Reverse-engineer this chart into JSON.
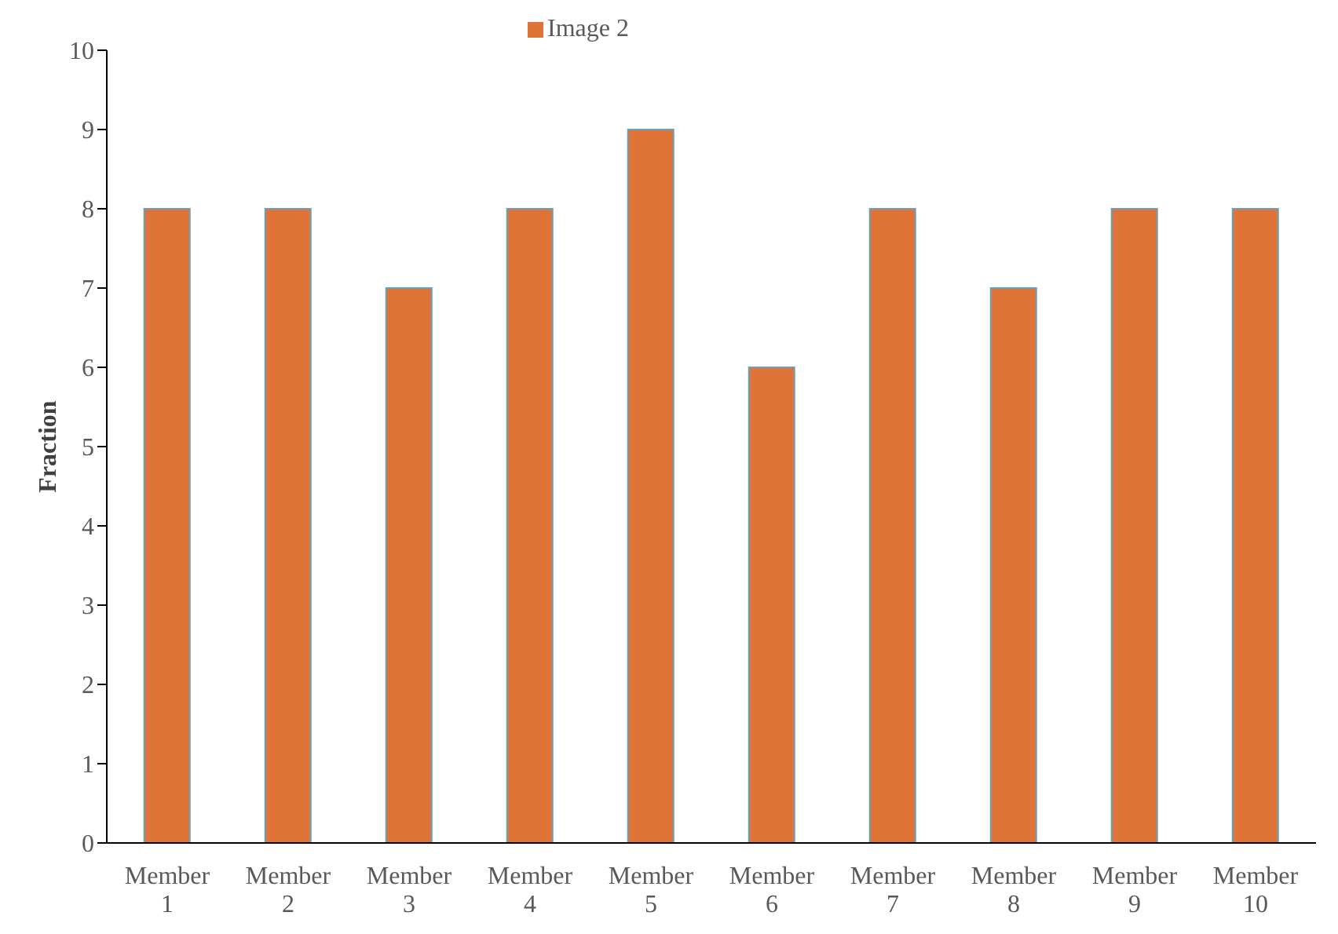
{
  "chart_data": {
    "type": "bar",
    "ylabel": "Fraction",
    "categories": [
      "Member 1",
      "Member 2",
      "Member 3",
      "Member 4",
      "Member 5",
      "Member 6",
      "Member 7",
      "Member 8",
      "Member 9",
      "Member 10"
    ],
    "series": [
      {
        "name": "Image 2",
        "color": "#e07338",
        "values": [
          8,
          8,
          7,
          8,
          9,
          6,
          8,
          7,
          8,
          8
        ]
      }
    ],
    "ylim": [
      0,
      10
    ],
    "yticks": [
      0,
      1,
      2,
      3,
      4,
      5,
      6,
      7,
      8,
      9,
      10
    ],
    "grid": false,
    "legend": "top"
  }
}
